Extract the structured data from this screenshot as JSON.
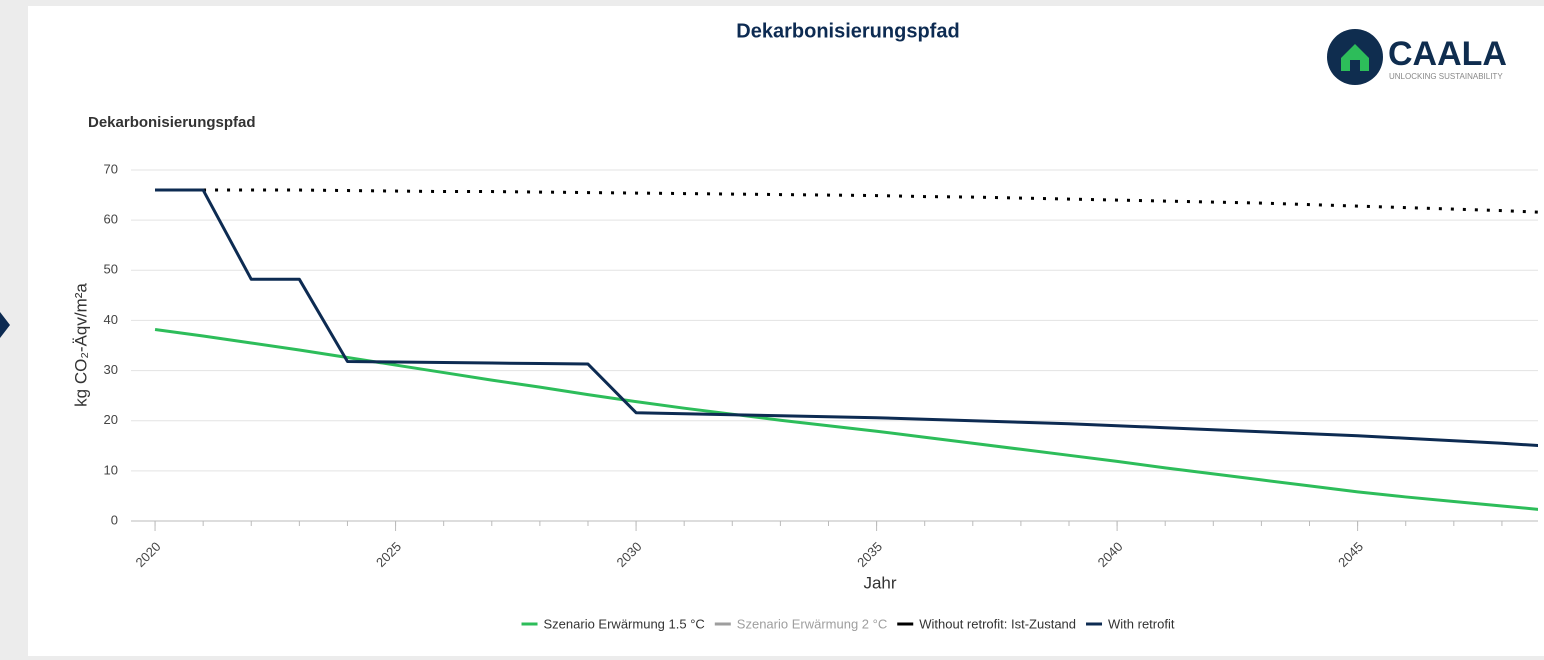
{
  "logo": {
    "text": "CAALA",
    "tagline": "UNLOCKING SUSTAINABILITY"
  },
  "chart_data": {
    "type": "line",
    "title": "Dekarbonisierungspfad",
    "subtitle": "Dekarbonisierungspfad",
    "x_label": "Jahr",
    "y_label": "kg CO₂-Äqv/m²a",
    "x": [
      2020,
      2021,
      2022,
      2023,
      2024,
      2025,
      2026,
      2027,
      2028,
      2029,
      2030,
      2031,
      2032,
      2033,
      2034,
      2035,
      2036,
      2037,
      2038,
      2039,
      2040,
      2041,
      2042,
      2043,
      2044,
      2045,
      2046,
      2047,
      2048,
      2049
    ],
    "xlim": [
      2019.5,
      2048.75
    ],
    "xticks": [
      2020,
      2025,
      2030,
      2035,
      2040,
      2045
    ],
    "ylim": [
      0,
      70
    ],
    "yticks": [
      0,
      10,
      20,
      30,
      40,
      50,
      60,
      70
    ],
    "grid": true,
    "legend": "bottom",
    "series": [
      {
        "name": "Szenario Erwärmung 1.5 °C",
        "color": "#2dbd5a",
        "style": "solid",
        "values": [
          38.2,
          36.9,
          35.5,
          34.1,
          32.6,
          31.1,
          29.6,
          28.1,
          26.7,
          25.2,
          23.8,
          22.5,
          21.3,
          20.1,
          19.0,
          17.9,
          16.7,
          15.5,
          14.3,
          13.1,
          11.9,
          10.6,
          9.4,
          8.2,
          7.0,
          5.8,
          4.8,
          3.9,
          3.0,
          2.1
        ]
      },
      {
        "name": "Szenario Erwärmung 2 °C",
        "color": "#9e9e9e",
        "hidden": true
      },
      {
        "name": "Without retrofit: Ist-Zustand",
        "color": "#000000",
        "style": "dotted",
        "values": [
          66.0,
          66.0,
          66.0,
          66.0,
          65.9,
          65.8,
          65.7,
          65.7,
          65.6,
          65.5,
          65.4,
          65.3,
          65.2,
          65.1,
          65.0,
          64.9,
          64.7,
          64.6,
          64.4,
          64.2,
          64.0,
          63.8,
          63.6,
          63.4,
          63.1,
          62.8,
          62.5,
          62.2,
          61.9,
          61.5
        ]
      },
      {
        "name": "With retrofit",
        "color": "#0d2b52",
        "style": "solid",
        "values": [
          66.0,
          66.0,
          48.2,
          48.2,
          31.8,
          31.7,
          31.6,
          31.5,
          31.4,
          31.3,
          21.6,
          21.4,
          21.2,
          21.0,
          20.8,
          20.6,
          20.3,
          20.0,
          19.7,
          19.4,
          19.0,
          18.6,
          18.2,
          17.8,
          17.4,
          17.0,
          16.5,
          16.0,
          15.5,
          14.9
        ]
      }
    ]
  }
}
